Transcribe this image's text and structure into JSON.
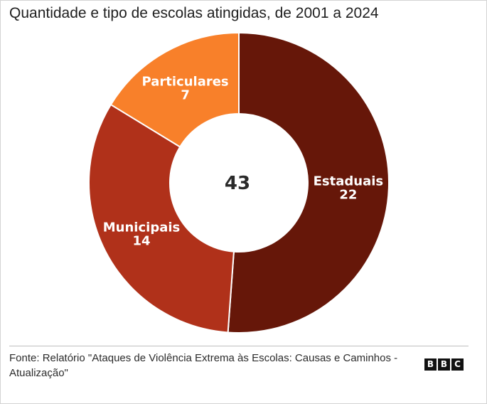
{
  "header": {
    "title": "Quantidade e tipo de escolas atingidas, de 2001 a 2024"
  },
  "chart_data": {
    "type": "pie",
    "variant": "donut",
    "title": "Quantidade e tipo de escolas atingidas, de 2001 a 2024",
    "total": "43",
    "categories": [
      "Estaduais",
      "Municipais",
      "Particulares"
    ],
    "values": [
      22,
      14,
      7
    ],
    "value_labels": [
      "22",
      "14",
      "7"
    ],
    "colors": [
      "#661709",
      "#b0311a",
      "#f8802a"
    ]
  },
  "footer": {
    "source": "Fonte: Relatório \"Ataques de Violência Extrema às Escolas: Causas e Caminhos - Atualização\"",
    "logo_letters": [
      "B",
      "B",
      "C"
    ]
  }
}
